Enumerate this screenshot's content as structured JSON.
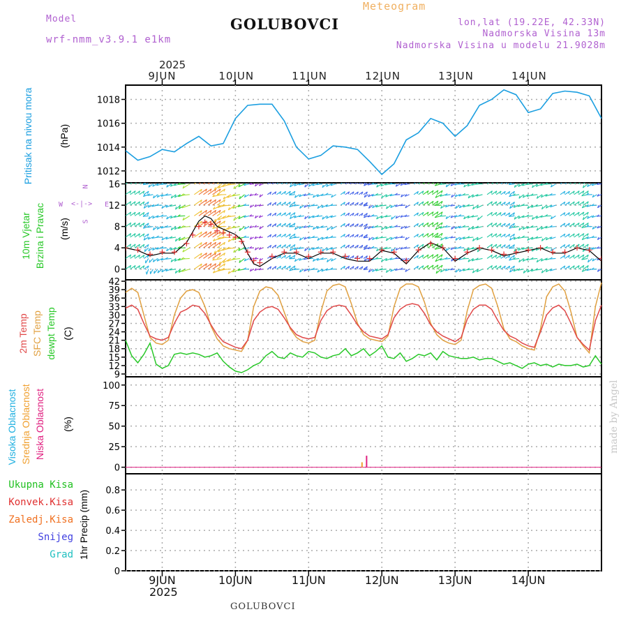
{
  "header": {
    "model_label": "Model",
    "model_value": "wrf-nmm_v3.9.1 e1km",
    "title": "GOLUBOVCI",
    "subtitle": "Meteogram",
    "lonlat": "lon,lat (19.22E, 42.33N)",
    "altitude": "Nadmorska Visina 13m",
    "model_altitude": "Nadmorska Visina u modelu 21.9028m",
    "footer_title": "GOLUBOVCI",
    "watermark": "made by Angel"
  },
  "time_axis": {
    "year_label": "2025",
    "days": [
      "9JUN",
      "10JUN",
      "11JUN",
      "12JUN",
      "13JUN",
      "14JUN"
    ],
    "range_hours": [
      -12,
      144
    ]
  },
  "panel_labels": {
    "pressure": [
      "Pritisak na nivou mora"
    ],
    "pressure_unit": "(hPa)",
    "wind": [
      "10m Vjetar",
      "Brzina i Pravac"
    ],
    "wind_unit": "(m/s)",
    "wind_compass": [
      "N",
      "W",
      "E",
      "S"
    ],
    "temp": [
      "2m Temp",
      "SFC Temp",
      "dewpt Temp"
    ],
    "temp_unit": "(C)",
    "cloud": [
      "Visoka Oblacnost",
      "Srednja Oblacnost",
      "Niska Oblacnost"
    ],
    "cloud_unit": "(%)",
    "precip": [
      "Ukupna Kisa",
      "Konvek.Kisa",
      "Zaledj.Kisa",
      "Snijeg",
      "Grad"
    ],
    "precip_unit": "1hr Precip (mm)"
  },
  "colors": {
    "pressure": "#1a9ee0",
    "temp2m": "#e04848",
    "sfctemp": "#e0a040",
    "dewpt": "#28c828",
    "high_cloud": "#20b0e0",
    "mid_cloud": "#f0a030",
    "low_cloud": "#e02080",
    "total_rain": "#20c020",
    "conv_rain": "#e03030",
    "freezing_rain": "#f07020",
    "snow": "#4040e0",
    "hail": "#20c0c0",
    "header_purple": "#b060d0",
    "subtitle_orange": "#f0b060"
  },
  "chart_data": [
    {
      "type": "line",
      "name": "pressure",
      "ylim": [
        1011,
        1019.2
      ],
      "yticks": [
        1012,
        1014,
        1016,
        1018
      ],
      "x": [
        -12,
        -8,
        -4,
        0,
        4,
        8,
        12,
        16,
        20,
        24,
        28,
        32,
        36,
        40,
        44,
        48,
        52,
        56,
        60,
        64,
        68,
        72,
        76,
        80,
        84,
        88,
        92,
        96,
        100,
        104,
        108,
        112,
        116,
        120,
        124,
        128,
        132,
        136,
        140,
        144
      ],
      "y": [
        1013.7,
        1012.9,
        1013.2,
        1013.8,
        1013.6,
        1014.3,
        1014.9,
        1014.1,
        1014.3,
        1016.4,
        1017.5,
        1017.6,
        1017.6,
        1016.2,
        1014.0,
        1013.0,
        1013.3,
        1014.1,
        1014.0,
        1013.8,
        1012.8,
        1011.7,
        1012.6,
        1014.6,
        1015.2,
        1016.4,
        1016.0,
        1014.9,
        1015.8,
        1017.5,
        1018.0,
        1018.8,
        1018.4,
        1016.9,
        1017.2,
        1018.5,
        1018.7,
        1018.6,
        1018.3,
        1016.4
      ]
    },
    {
      "type": "line",
      "name": "temperature",
      "ylim": [
        8,
        42.5
      ],
      "yticks": [
        9,
        12,
        15,
        18,
        21,
        24,
        27,
        30,
        33,
        36,
        39,
        42
      ],
      "x": [
        -12,
        -10,
        -8,
        -6,
        -4,
        -2,
        0,
        2,
        4,
        6,
        8,
        10,
        12,
        14,
        16,
        18,
        20,
        22,
        24,
        26,
        28,
        30,
        32,
        34,
        36,
        38,
        40,
        42,
        44,
        46,
        48,
        50,
        52,
        54,
        56,
        58,
        60,
        62,
        64,
        66,
        68,
        70,
        72,
        74,
        76,
        78,
        80,
        82,
        84,
        86,
        88,
        90,
        92,
        94,
        96,
        98,
        100,
        102,
        104,
        106,
        108,
        110,
        112,
        114,
        116,
        118,
        120,
        122,
        124,
        126,
        128,
        130,
        132,
        134,
        136,
        138,
        140,
        142,
        144
      ],
      "series": [
        {
          "name": "2m Temp",
          "values": [
            32.4,
            33.5,
            32.0,
            27.0,
            22.5,
            21.5,
            21.0,
            22.0,
            27.0,
            31.0,
            32.0,
            33.5,
            33.0,
            30.5,
            26.5,
            23.0,
            20.5,
            19.5,
            18.5,
            18.0,
            21.0,
            28.0,
            31.0,
            32.5,
            33.0,
            32.0,
            29.0,
            25.5,
            23.0,
            22.0,
            21.5,
            22.0,
            28.0,
            31.5,
            33.0,
            33.5,
            33.0,
            30.0,
            26.5,
            24.0,
            22.5,
            22.0,
            21.5,
            23.0,
            29.0,
            32.0,
            33.5,
            34.0,
            33.5,
            30.5,
            26.5,
            24.0,
            22.5,
            21.5,
            20.5,
            22.0,
            28.5,
            32.0,
            33.5,
            33.5,
            32.0,
            28.0,
            24.5,
            22.5,
            21.5,
            20.0,
            19.0,
            18.5,
            24.0,
            30.0,
            32.5,
            33.5,
            31.5,
            27.0,
            22.0,
            19.5,
            17.5,
            28.0,
            33.5
          ]
        },
        {
          "name": "SFC Temp",
          "values": [
            38.0,
            39.5,
            38.0,
            30.0,
            22.0,
            20.0,
            19.5,
            21.0,
            30.0,
            36.0,
            38.5,
            39.0,
            38.0,
            33.0,
            26.0,
            21.5,
            19.0,
            18.0,
            17.5,
            17.0,
            21.0,
            33.0,
            38.5,
            40.0,
            39.5,
            37.0,
            31.0,
            25.0,
            22.0,
            20.5,
            20.0,
            21.0,
            31.0,
            38.5,
            40.5,
            41.0,
            40.0,
            34.0,
            27.0,
            23.0,
            21.5,
            21.0,
            20.5,
            22.5,
            33.0,
            39.5,
            41.0,
            41.0,
            40.0,
            34.5,
            27.0,
            23.0,
            21.0,
            20.0,
            19.5,
            21.0,
            31.5,
            39.0,
            40.5,
            41.0,
            39.5,
            33.0,
            25.0,
            21.5,
            20.5,
            19.0,
            18.0,
            17.5,
            25.0,
            36.5,
            40.0,
            41.0,
            38.5,
            31.0,
            22.0,
            19.0,
            16.5,
            33.0,
            41.5
          ]
        },
        {
          "name": "dewpt Temp",
          "values": [
            21.0,
            15.5,
            13.0,
            16.0,
            20.0,
            12.5,
            11.0,
            12.0,
            16.0,
            16.5,
            16.0,
            16.5,
            16.0,
            15.0,
            15.5,
            16.5,
            13.5,
            11.5,
            10.0,
            9.5,
            10.5,
            12.0,
            13.0,
            15.5,
            17.0,
            15.0,
            14.5,
            16.5,
            15.5,
            15.0,
            17.0,
            16.5,
            15.0,
            14.5,
            15.5,
            16.0,
            18.0,
            15.5,
            16.5,
            18.0,
            15.5,
            17.0,
            19.0,
            15.0,
            14.5,
            16.5,
            13.5,
            14.5,
            16.0,
            15.5,
            16.5,
            14.0,
            17.0,
            15.5,
            15.0,
            14.5,
            14.5,
            15.0,
            14.0,
            14.5,
            14.5,
            13.5,
            12.5,
            13.0,
            12.0,
            11.0,
            12.5,
            13.0,
            12.0,
            12.5,
            11.5,
            12.5,
            12.0,
            12.0,
            12.5,
            11.5,
            12.0,
            15.5,
            12.5
          ]
        }
      ]
    },
    {
      "type": "bar",
      "name": "cloud_cover",
      "ylim": [
        -8,
        110
      ],
      "yticks": [
        0,
        25,
        50,
        75,
        100
      ],
      "series": [
        {
          "name": "Visoka Oblacnost",
          "x": [],
          "values": []
        },
        {
          "name": "Srednja Oblacnost",
          "x": [
            65.5
          ],
          "values": [
            6
          ]
        },
        {
          "name": "Niska Oblacnost",
          "x": [
            67
          ],
          "values": [
            14
          ]
        }
      ]
    },
    {
      "type": "bar",
      "name": "precipitation",
      "ylim": [
        0,
        0.96
      ],
      "yticks": [
        0,
        0.2,
        0.4,
        0.6,
        0.8
      ],
      "ytick_labels": [
        "0",
        "0.2",
        "0.4",
        "0.6",
        "0.8"
      ],
      "series": []
    },
    {
      "type": "line",
      "name": "wind_speed",
      "ylim": [
        -2,
        16.2
      ],
      "yticks": [
        0,
        4,
        8,
        12,
        16
      ],
      "x": [
        -12,
        -8,
        -4,
        0,
        4,
        8,
        10,
        12,
        14,
        16,
        18,
        20,
        22,
        24,
        26,
        28,
        30,
        32,
        36,
        40,
        44,
        48,
        52,
        56,
        60,
        64,
        68,
        72,
        76,
        80,
        84,
        88,
        92,
        96,
        100,
        104,
        108,
        112,
        116,
        120,
        124,
        128,
        132,
        136,
        140,
        144
      ],
      "y": [
        4.0,
        3.5,
        2.5,
        3.0,
        3.0,
        5.0,
        7.0,
        9.0,
        10.0,
        9.5,
        8.0,
        7.5,
        7.0,
        6.5,
        5.5,
        3.0,
        1.0,
        0.5,
        2.0,
        3.0,
        3.0,
        2.0,
        3.0,
        3.0,
        2.0,
        1.5,
        1.5,
        3.5,
        3.0,
        1.0,
        3.5,
        5.0,
        4.0,
        1.5,
        3.0,
        4.0,
        3.5,
        2.5,
        3.0,
        3.5,
        4.0,
        3.0,
        3.0,
        4.0,
        3.5,
        1.5
      ]
    }
  ]
}
